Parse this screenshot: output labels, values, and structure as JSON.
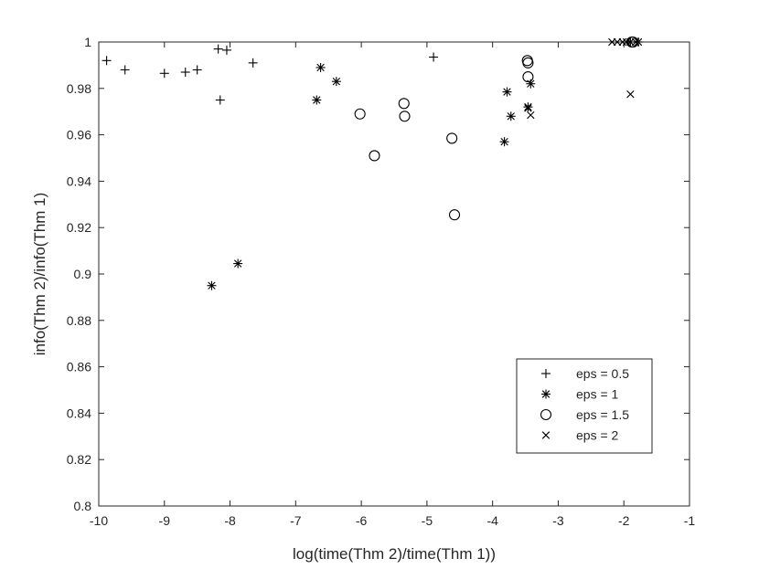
{
  "chart_data": {
    "type": "scatter",
    "title": "",
    "xlabel": "log(time(Thm 2)/time(Thm 1))",
    "ylabel": "info(Thm 2)/info(Thm 1)",
    "xlim": [
      -10,
      -1
    ],
    "ylim": [
      0.8,
      1
    ],
    "xticks": [
      "-10",
      "-9",
      "-8",
      "-7",
      "-6",
      "-5",
      "-4",
      "-3",
      "-2",
      "-1"
    ],
    "yticks": [
      "0.8",
      "0.82",
      "0.84",
      "0.86",
      "0.88",
      "0.9",
      "0.92",
      "0.94",
      "0.96",
      "0.98",
      "1"
    ],
    "grid": false,
    "box": true,
    "legend_position": "bottom-right",
    "series": [
      {
        "name": "eps = 0.5",
        "marker": "plus",
        "x": [
          -9.88,
          -9.6,
          -9.0,
          -8.68,
          -8.5,
          -8.18,
          -8.05,
          -8.15,
          -7.65,
          -4.9
        ],
        "y": [
          0.992,
          0.988,
          0.9865,
          0.987,
          0.988,
          0.997,
          0.9965,
          0.975,
          0.991,
          0.9935
        ]
      },
      {
        "name": "eps = 1",
        "marker": "asterisk",
        "x": [
          -8.28,
          -7.88,
          -6.68,
          -6.62,
          -6.38,
          -3.82,
          -3.78,
          -3.72,
          -3.46,
          -3.42,
          -1.9,
          -1.78
        ],
        "y": [
          0.895,
          0.9045,
          0.975,
          0.989,
          0.983,
          0.957,
          0.9785,
          0.968,
          0.972,
          0.982,
          1.0,
          1.0
        ]
      },
      {
        "name": "eps = 1.5",
        "marker": "circle",
        "x": [
          -6.02,
          -5.8,
          -5.35,
          -5.34,
          -4.62,
          -4.58,
          -3.47,
          -3.46,
          -3.46,
          -1.88,
          -1.86
        ],
        "y": [
          0.969,
          0.951,
          0.9735,
          0.968,
          0.9585,
          0.9255,
          0.992,
          0.991,
          0.985,
          1.0,
          1.0
        ]
      },
      {
        "name": "eps = 2",
        "marker": "cross",
        "x": [
          -2.18,
          -2.1,
          -2.02,
          -1.96,
          -1.9,
          -1.82,
          -3.46,
          -3.42
        ],
        "y": [
          1.0,
          1.0,
          1.0,
          1.0,
          0.9775,
          1.0,
          0.9715,
          0.9685
        ]
      }
    ]
  }
}
